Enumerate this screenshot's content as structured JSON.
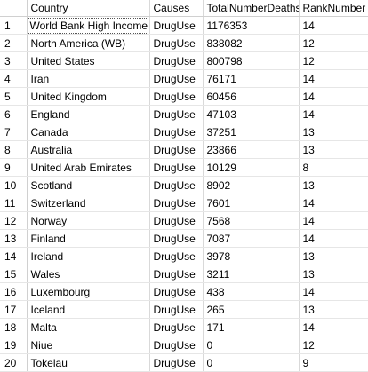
{
  "grid": {
    "columns": [
      "",
      "Country",
      "Causes",
      "TotalNumberDeaths",
      "RankNumber"
    ],
    "rows": [
      {
        "n": "1",
        "country": "World Bank High Income",
        "causes": "DrugUse",
        "deaths": "1176353",
        "rank": "14"
      },
      {
        "n": "2",
        "country": "North America (WB)",
        "causes": "DrugUse",
        "deaths": "838082",
        "rank": "12"
      },
      {
        "n": "3",
        "country": "United States",
        "causes": "DrugUse",
        "deaths": "800798",
        "rank": "12"
      },
      {
        "n": "4",
        "country": "Iran",
        "causes": "DrugUse",
        "deaths": "76171",
        "rank": "14"
      },
      {
        "n": "5",
        "country": "United Kingdom",
        "causes": "DrugUse",
        "deaths": "60456",
        "rank": "14"
      },
      {
        "n": "6",
        "country": "England",
        "causes": "DrugUse",
        "deaths": "47103",
        "rank": "14"
      },
      {
        "n": "7",
        "country": "Canada",
        "causes": "DrugUse",
        "deaths": "37251",
        "rank": "13"
      },
      {
        "n": "8",
        "country": "Australia",
        "causes": "DrugUse",
        "deaths": "23866",
        "rank": "13"
      },
      {
        "n": "9",
        "country": "United Arab Emirates",
        "causes": "DrugUse",
        "deaths": "10129",
        "rank": "8"
      },
      {
        "n": "10",
        "country": "Scotland",
        "causes": "DrugUse",
        "deaths": "8902",
        "rank": "13"
      },
      {
        "n": "11",
        "country": "Switzerland",
        "causes": "DrugUse",
        "deaths": "7601",
        "rank": "14"
      },
      {
        "n": "12",
        "country": "Norway",
        "causes": "DrugUse",
        "deaths": "7568",
        "rank": "14"
      },
      {
        "n": "13",
        "country": "Finland",
        "causes": "DrugUse",
        "deaths": "7087",
        "rank": "14"
      },
      {
        "n": "14",
        "country": "Ireland",
        "causes": "DrugUse",
        "deaths": "3978",
        "rank": "13"
      },
      {
        "n": "15",
        "country": "Wales",
        "causes": "DrugUse",
        "deaths": "3211",
        "rank": "13"
      },
      {
        "n": "16",
        "country": "Luxembourg",
        "causes": "DrugUse",
        "deaths": "438",
        "rank": "14"
      },
      {
        "n": "17",
        "country": "Iceland",
        "causes": "DrugUse",
        "deaths": "265",
        "rank": "13"
      },
      {
        "n": "18",
        "country": "Malta",
        "causes": "DrugUse",
        "deaths": "171",
        "rank": "14"
      },
      {
        "n": "19",
        "country": "Niue",
        "causes": "DrugUse",
        "deaths": "0",
        "rank": "12"
      },
      {
        "n": "20",
        "country": "Tokelau",
        "causes": "DrugUse",
        "deaths": "0",
        "rank": "9"
      }
    ],
    "selected_cell": {
      "row": 0,
      "column": "country"
    }
  }
}
